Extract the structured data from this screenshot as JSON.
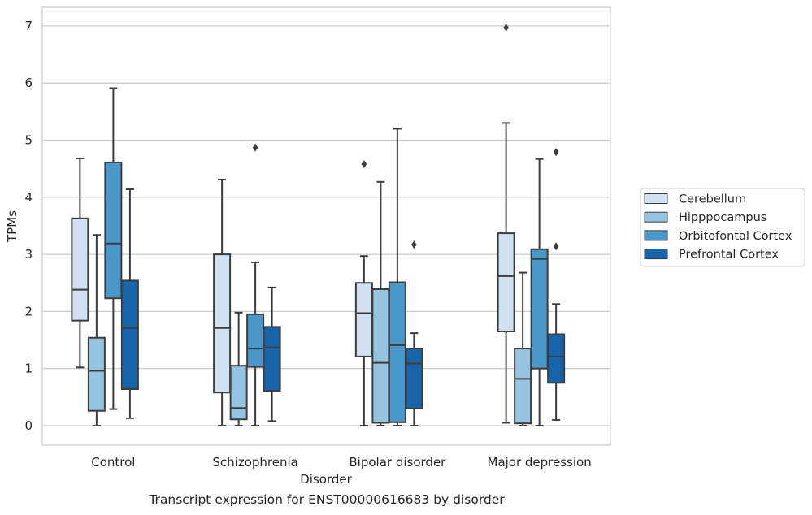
{
  "chart_data": {
    "type": "box",
    "caption": "Transcript expression for ENST00000616683 by disorder",
    "xlabel": "Disorder",
    "ylabel": "TPMs",
    "ylim": [
      -0.33,
      7.33
    ],
    "yticks": [
      0,
      1,
      2,
      3,
      4,
      5,
      6,
      7
    ],
    "grid": "horizontal",
    "legend_position": "right",
    "categories": [
      "Control",
      "Schizophrenia",
      "Bipolar disorder",
      "Major depression"
    ],
    "series": [
      {
        "name": "Cerebellum",
        "color": "#d0e1f2",
        "boxes": [
          {
            "whisker_low": 1.02,
            "q1": 1.84,
            "median": 2.38,
            "q3": 3.63,
            "whisker_high": 4.68,
            "outliers": []
          },
          {
            "whisker_low": 0.0,
            "q1": 0.58,
            "median": 1.71,
            "q3": 3.0,
            "whisker_high": 4.31,
            "outliers": []
          },
          {
            "whisker_low": 0.0,
            "q1": 1.21,
            "median": 1.97,
            "q3": 2.5,
            "whisker_high": 2.97,
            "outliers": [
              4.58
            ]
          },
          {
            "whisker_low": 0.05,
            "q1": 1.65,
            "median": 2.62,
            "q3": 3.37,
            "whisker_high": 5.3,
            "outliers": [
              6.97
            ]
          }
        ]
      },
      {
        "name": "Hipppocampus",
        "color": "#94c4df",
        "boxes": [
          {
            "whisker_low": 0.0,
            "q1": 0.26,
            "median": 0.96,
            "q3": 1.54,
            "whisker_high": 3.34,
            "outliers": []
          },
          {
            "whisker_low": 0.0,
            "q1": 0.11,
            "median": 0.31,
            "q3": 1.05,
            "whisker_high": 1.98,
            "outliers": []
          },
          {
            "whisker_low": 0.0,
            "q1": 0.05,
            "median": 1.1,
            "q3": 2.39,
            "whisker_high": 4.27,
            "outliers": []
          },
          {
            "whisker_low": 0.0,
            "q1": 0.04,
            "median": 0.82,
            "q3": 1.35,
            "whisker_high": 2.68,
            "outliers": []
          }
        ]
      },
      {
        "name": "Orbitofontal Cortex",
        "color": "#4a98c9",
        "boxes": [
          {
            "whisker_low": 0.29,
            "q1": 2.23,
            "median": 3.19,
            "q3": 4.61,
            "whisker_high": 5.91,
            "outliers": []
          },
          {
            "whisker_low": 0.0,
            "q1": 1.03,
            "median": 1.35,
            "q3": 1.95,
            "whisker_high": 2.86,
            "outliers": [
              4.87
            ]
          },
          {
            "whisker_low": 0.0,
            "q1": 0.06,
            "median": 1.41,
            "q3": 2.51,
            "whisker_high": 5.2,
            "outliers": []
          },
          {
            "whisker_low": 0.0,
            "q1": 1.0,
            "median": 2.92,
            "q3": 3.09,
            "whisker_high": 4.67,
            "outliers": []
          }
        ]
      },
      {
        "name": "Prefrontal Cortex",
        "color": "#1764ab",
        "boxes": [
          {
            "whisker_low": 0.13,
            "q1": 0.64,
            "median": 1.71,
            "q3": 2.54,
            "whisker_high": 4.14,
            "outliers": []
          },
          {
            "whisker_low": 0.08,
            "q1": 0.61,
            "median": 1.37,
            "q3": 1.73,
            "whisker_high": 2.42,
            "outliers": []
          },
          {
            "whisker_low": 0.0,
            "q1": 0.3,
            "median": 1.09,
            "q3": 1.35,
            "whisker_high": 1.62,
            "outliers": [
              3.17
            ]
          },
          {
            "whisker_low": 0.1,
            "q1": 0.75,
            "median": 1.21,
            "q3": 1.6,
            "whisker_high": 2.13,
            "outliers": [
              3.14,
              4.79
            ]
          }
        ]
      }
    ]
  }
}
